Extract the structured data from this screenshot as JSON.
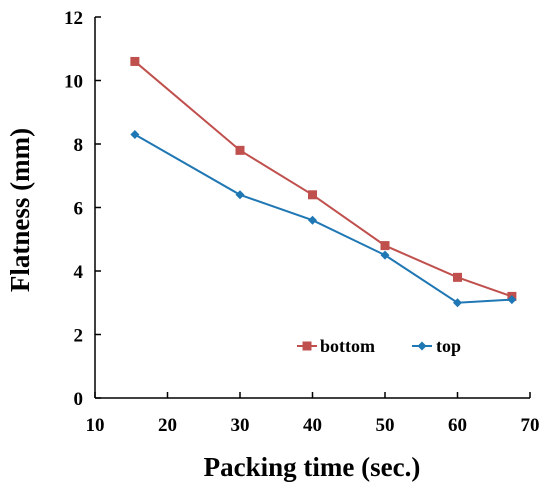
{
  "chart_data": {
    "type": "line",
    "xlabel": "Packing time (sec.)",
    "ylabel": "Flatness (mm)",
    "xlim": [
      10,
      70
    ],
    "ylim": [
      0,
      12
    ],
    "xticks": [
      10,
      20,
      30,
      40,
      50,
      60,
      70
    ],
    "yticks": [
      0,
      2,
      4,
      6,
      8,
      10,
      12
    ],
    "grid": false,
    "legend_position": "bottom-right",
    "series": [
      {
        "name": "bottom",
        "color": "#C0504D",
        "marker": "square",
        "x": [
          15.5,
          30,
          40,
          50,
          60,
          67.5
        ],
        "y": [
          10.6,
          7.8,
          6.4,
          4.8,
          3.8,
          3.2
        ]
      },
      {
        "name": "top",
        "color": "#1F77B4",
        "marker": "diamond",
        "x": [
          15.5,
          30,
          40,
          50,
          60,
          67.5
        ],
        "y": [
          8.3,
          6.4,
          5.6,
          4.5,
          3.0,
          3.1
        ]
      }
    ]
  }
}
